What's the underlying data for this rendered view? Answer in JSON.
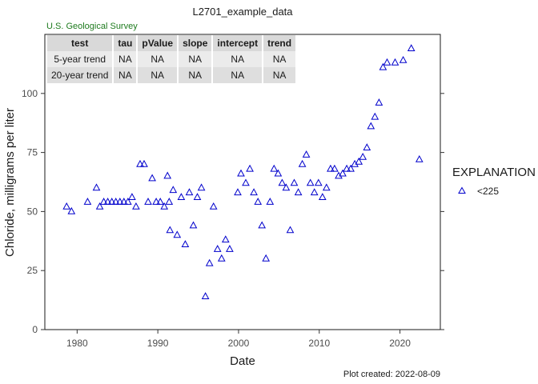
{
  "chart_data": {
    "type": "scatter",
    "title": "L2701_example_data",
    "agency": "U.S. Geological Survey",
    "xlabel": "Date",
    "ylabel": "Chloride, milligrams per liter",
    "caption": "Plot created: 2022-08-09",
    "xlim": [
      1976,
      2025
    ],
    "ylim": [
      0,
      125
    ],
    "xticks": [
      1980,
      1990,
      2000,
      2010,
      2020
    ],
    "yticks": [
      0,
      25,
      50,
      75,
      100
    ],
    "grid": false,
    "legend": {
      "title": "EXPLANATION",
      "placement": "right"
    },
    "series": [
      {
        "name": "<225",
        "marker": "open-triangle",
        "color": "#0000cc",
        "points": [
          [
            1978.7,
            52
          ],
          [
            1979.3,
            50
          ],
          [
            1981.3,
            54
          ],
          [
            1982.4,
            60
          ],
          [
            1982.8,
            52
          ],
          [
            1983.3,
            54
          ],
          [
            1983.8,
            54
          ],
          [
            1984.3,
            54
          ],
          [
            1984.8,
            54
          ],
          [
            1985.3,
            54
          ],
          [
            1985.8,
            54
          ],
          [
            1986.3,
            54
          ],
          [
            1986.8,
            56
          ],
          [
            1987.3,
            52
          ],
          [
            1987.8,
            70
          ],
          [
            1988.3,
            70
          ],
          [
            1988.8,
            54
          ],
          [
            1989.3,
            64
          ],
          [
            1989.8,
            54
          ],
          [
            1990.3,
            54
          ],
          [
            1990.8,
            52
          ],
          [
            1991.2,
            65
          ],
          [
            1991.4,
            54
          ],
          [
            1991.5,
            42
          ],
          [
            1991.9,
            59
          ],
          [
            1992.4,
            40
          ],
          [
            1992.9,
            56
          ],
          [
            1993.4,
            36
          ],
          [
            1993.9,
            58
          ],
          [
            1994.4,
            44
          ],
          [
            1994.9,
            56
          ],
          [
            1995.4,
            60
          ],
          [
            1995.9,
            14
          ],
          [
            1996.4,
            28
          ],
          [
            1996.9,
            52
          ],
          [
            1997.4,
            34
          ],
          [
            1997.9,
            30
          ],
          [
            1998.4,
            38
          ],
          [
            1998.9,
            34
          ],
          [
            1999.9,
            58
          ],
          [
            2000.3,
            66
          ],
          [
            2000.9,
            62
          ],
          [
            2001.4,
            68
          ],
          [
            2001.9,
            58
          ],
          [
            2002.4,
            54
          ],
          [
            2002.9,
            44
          ],
          [
            2003.4,
            30
          ],
          [
            2003.9,
            54
          ],
          [
            2004.4,
            68
          ],
          [
            2004.9,
            66
          ],
          [
            2005.4,
            62
          ],
          [
            2005.9,
            60
          ],
          [
            2006.4,
            42
          ],
          [
            2006.9,
            62
          ],
          [
            2007.4,
            58
          ],
          [
            2007.9,
            70
          ],
          [
            2008.4,
            74
          ],
          [
            2008.9,
            62
          ],
          [
            2009.4,
            58
          ],
          [
            2009.9,
            62
          ],
          [
            2010.4,
            56
          ],
          [
            2010.9,
            60
          ],
          [
            2011.4,
            68
          ],
          [
            2011.9,
            68
          ],
          [
            2012.4,
            65
          ],
          [
            2012.9,
            66
          ],
          [
            2013.4,
            68
          ],
          [
            2013.9,
            68
          ],
          [
            2014.4,
            70
          ],
          [
            2014.9,
            71
          ],
          [
            2015.4,
            73
          ],
          [
            2015.9,
            77
          ],
          [
            2016.4,
            86
          ],
          [
            2016.9,
            90
          ],
          [
            2017.4,
            96
          ],
          [
            2017.9,
            111
          ],
          [
            2018.4,
            113
          ],
          [
            2019.4,
            113
          ],
          [
            2020.4,
            114
          ],
          [
            2021.4,
            119
          ],
          [
            2022.4,
            72
          ]
        ]
      }
    ],
    "trend_table": {
      "columns": [
        "test",
        "tau",
        "pValue",
        "slope",
        "intercept",
        "trend"
      ],
      "rows": [
        [
          "5-year trend",
          "NA",
          "NA",
          "NA",
          "NA",
          "NA"
        ],
        [
          "20-year trend",
          "NA",
          "NA",
          "NA",
          "NA",
          "NA"
        ]
      ]
    }
  }
}
